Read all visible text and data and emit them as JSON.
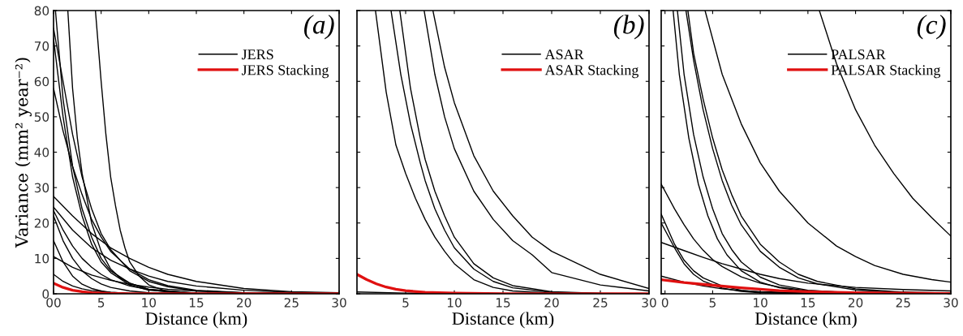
{
  "chart_data": [
    {
      "type": "line",
      "xlabel": "Distance (km)",
      "ylabel": "Variance (mm² year⁻²)",
      "annotations": [
        "(a)"
      ],
      "xlim": [
        0,
        30
      ],
      "ylim": [
        0,
        80
      ],
      "xticks": [
        {
          "value": 0,
          "label": "00"
        },
        5,
        10,
        15,
        20,
        25,
        30
      ],
      "yticks": [
        0,
        10,
        20,
        30,
        40,
        50,
        60,
        70,
        80
      ],
      "legend": "top right",
      "grid": false,
      "line_style": "solid",
      "marker": "none",
      "series": [
        {
          "name": "JERS",
          "color": "#000000",
          "x": [
            4.4,
            5,
            5.5,
            6,
            6.5,
            7,
            7.5,
            8,
            9,
            10,
            12,
            15,
            20,
            30
          ],
          "values": [
            80,
            60,
            45,
            33,
            25,
            18,
            13,
            9,
            5,
            2.5,
            0.6,
            0.1,
            0,
            0
          ]
        },
        {
          "color": "#000000",
          "x": [
            1.5,
            2,
            2.5,
            3,
            4,
            5,
            6,
            7,
            8,
            10,
            12,
            15,
            20,
            30
          ],
          "values": [
            80,
            58,
            44,
            34,
            20,
            12,
            7,
            4.5,
            3,
            1.2,
            0.5,
            0.1,
            0,
            0
          ]
        },
        {
          "color": "#000000",
          "x": [
            0.2,
            1,
            2,
            3,
            4,
            5,
            6,
            8,
            10,
            15,
            20,
            30
          ],
          "values": [
            80,
            55,
            36,
            24,
            16,
            10,
            6.5,
            3,
            1.3,
            0.2,
            0,
            0
          ]
        },
        {
          "color": "#000000",
          "x": [
            0,
            1,
            2,
            3,
            4,
            5,
            6,
            8,
            10,
            12,
            15,
            20,
            25,
            30
          ],
          "values": [
            75,
            60,
            45,
            33,
            24,
            17,
            12.5,
            6.5,
            3.5,
            2,
            0.8,
            0.2,
            0,
            0
          ]
        },
        {
          "color": "#000000",
          "x": [
            0,
            1,
            2,
            3,
            4,
            5,
            6,
            8,
            10,
            15,
            20,
            30
          ],
          "values": [
            72,
            50,
            33,
            22,
            14,
            9,
            6,
            2.5,
            1,
            0.1,
            0,
            0
          ]
        },
        {
          "color": "#000000",
          "x": [
            0,
            1,
            2,
            3,
            4,
            5,
            6,
            8,
            10,
            12,
            15,
            20,
            25,
            30
          ],
          "values": [
            58,
            46,
            36,
            28,
            21,
            16,
            12,
            7,
            4,
            2.3,
            1,
            0.3,
            0.1,
            0
          ]
        },
        {
          "color": "#000000",
          "x": [
            0,
            2,
            4,
            6,
            8,
            10,
            12,
            15,
            20,
            25,
            30
          ],
          "values": [
            27.5,
            22,
            17,
            13,
            10,
            7.5,
            5.5,
            3.5,
            1.5,
            0.6,
            0.3
          ]
        },
        {
          "color": "#000000",
          "x": [
            0,
            2,
            4,
            6,
            8,
            10,
            12,
            15,
            20,
            25,
            30
          ],
          "values": [
            24.5,
            18,
            13,
            9.5,
            7,
            5,
            3.5,
            2.2,
            1,
            0.4,
            0.2
          ]
        },
        {
          "color": "#000000",
          "x": [
            0,
            1,
            2,
            3,
            4,
            5,
            6,
            8,
            10,
            15,
            20,
            30
          ],
          "values": [
            23.5,
            18,
            13.5,
            10,
            7.5,
            5.5,
            4,
            2.2,
            1.2,
            0.2,
            0,
            0
          ]
        },
        {
          "color": "#000000",
          "x": [
            0,
            1,
            2,
            3,
            4,
            5,
            6,
            8,
            10,
            15,
            30
          ],
          "values": [
            22,
            15,
            10,
            6.5,
            4.3,
            2.8,
            1.8,
            0.8,
            0.3,
            0,
            0
          ]
        },
        {
          "color": "#000000",
          "x": [
            0,
            1,
            2,
            3,
            4,
            5,
            6,
            8,
            10,
            30
          ],
          "values": [
            15,
            9,
            5,
            2.7,
            1.5,
            0.8,
            0.4,
            0.1,
            0,
            0
          ]
        },
        {
          "color": "#000000",
          "x": [
            0,
            2,
            4,
            6,
            8,
            10,
            12,
            15,
            20,
            25,
            30
          ],
          "values": [
            10.5,
            7.5,
            5.3,
            3.8,
            2.7,
            1.9,
            1.3,
            0.8,
            0.3,
            0.1,
            0
          ]
        },
        {
          "color": "#000000",
          "x": [
            0,
            1,
            2,
            3,
            4,
            6,
            8,
            10,
            30
          ],
          "values": [
            5.5,
            3.5,
            2.2,
            1.4,
            0.9,
            0.4,
            0.1,
            0,
            0
          ]
        },
        {
          "name": "JERS Stacking",
          "color": "#e01010",
          "x": [
            0,
            1,
            2,
            3,
            4,
            6,
            8,
            30
          ],
          "values": [
            3,
            1.8,
            1,
            0.6,
            0.3,
            0.1,
            0,
            0
          ]
        }
      ]
    },
    {
      "type": "line",
      "xlabel": "Distance (km)",
      "annotations": [
        "(b)"
      ],
      "xlim": [
        0,
        30
      ],
      "ylim": [
        0,
        80
      ],
      "xticks": [
        5,
        10,
        15,
        20,
        25,
        30
      ],
      "yticks": [
        0,
        10,
        20,
        30,
        40,
        50,
        60,
        70,
        80
      ],
      "tick_labels": "x",
      "legend": "top right",
      "grid": false,
      "line_style": "solid",
      "marker": "none",
      "series": [
        {
          "name": "ASAR",
          "color": "#000000",
          "x": [
            1.9,
            3,
            4,
            5,
            6,
            7,
            8,
            9,
            10,
            12,
            14,
            16,
            20,
            25,
            30
          ],
          "values": [
            80,
            57,
            42,
            34,
            27,
            21,
            16,
            12,
            8.5,
            4,
            1.8,
            0.8,
            0.2,
            0,
            0
          ]
        },
        {
          "color": "#000000",
          "x": [
            3.5,
            4.5,
            5.5,
            6.5,
            7,
            8,
            9,
            10,
            12,
            14,
            16,
            20,
            25,
            30
          ],
          "values": [
            80,
            62,
            48,
            37,
            32,
            24,
            18,
            13,
            7,
            3.5,
            1.7,
            0.4,
            0.1,
            0
          ]
        },
        {
          "color": "#000000",
          "x": [
            4.4,
            5.5,
            6.5,
            7,
            8,
            9,
            10,
            12,
            14,
            16,
            20,
            25,
            30
          ],
          "values": [
            80,
            58,
            44,
            38,
            29,
            22,
            16,
            8.5,
            4.5,
            2.3,
            0.6,
            0.1,
            0
          ]
        },
        {
          "color": "#000000",
          "x": [
            6.9,
            8,
            9,
            10,
            12,
            14,
            16,
            18,
            20,
            25,
            30
          ],
          "values": [
            80,
            62,
            50,
            41,
            29,
            21,
            15,
            11,
            6,
            2.5,
            0.8
          ]
        },
        {
          "color": "#000000",
          "x": [
            7.8,
            9,
            10,
            12,
            14,
            16,
            18,
            20,
            25,
            30
          ],
          "values": [
            80,
            64,
            54,
            39,
            29,
            22,
            16,
            12,
            5.5,
            1.5
          ]
        },
        {
          "color": "#000000",
          "x": [
            0,
            5,
            10,
            30
          ],
          "values": [
            0.5,
            0.2,
            0.1,
            0
          ]
        },
        {
          "name": "ASAR Stacking",
          "color": "#e01010",
          "x": [
            0,
            1,
            2,
            3,
            4,
            5,
            7,
            10,
            15,
            30
          ],
          "values": [
            5.5,
            4,
            2.8,
            1.9,
            1.3,
            0.9,
            0.4,
            0.2,
            0,
            0
          ]
        }
      ]
    },
    {
      "type": "line",
      "xlabel": "Distance (km)",
      "annotations": [
        "(c)"
      ],
      "xlim": [
        -0.4,
        30
      ],
      "ylim": [
        0,
        80
      ],
      "xticks": [
        0,
        5,
        10,
        15,
        20,
        25,
        30
      ],
      "yticks": [
        0,
        10,
        20,
        30,
        40,
        50,
        60,
        70,
        80
      ],
      "tick_labels": "x",
      "legend": "top right",
      "grid": false,
      "line_style": "solid",
      "marker": "none",
      "series": [
        {
          "name": "PALSAR",
          "color": "#000000",
          "x": [
            16.2,
            18,
            20,
            22,
            24,
            26,
            28,
            30
          ],
          "values": [
            80,
            65,
            52,
            42,
            34,
            27,
            21.5,
            16.3
          ]
        },
        {
          "color": "#000000",
          "x": [
            4.2,
            6,
            8,
            10,
            12,
            15,
            18,
            20,
            22,
            25,
            28,
            30
          ],
          "values": [
            80,
            62,
            48,
            37,
            29,
            20,
            13.5,
            10.5,
            8,
            5.5,
            4,
            3.3
          ]
        },
        {
          "color": "#000000",
          "x": [
            2.2,
            3,
            4,
            5,
            6,
            7,
            8,
            10,
            12,
            14,
            16,
            20,
            25
          ],
          "values": [
            80,
            66,
            52,
            41,
            32,
            25,
            19.5,
            12,
            7.5,
            4.5,
            2.8,
            1.1,
            0.3
          ]
        },
        {
          "color": "#000000",
          "x": [
            2.4,
            3,
            4,
            5,
            6,
            7,
            8,
            10,
            12,
            14,
            16,
            20,
            25,
            30
          ],
          "values": [
            80,
            68,
            55,
            44,
            35,
            28,
            22,
            14,
            9,
            5.5,
            3.5,
            1.4,
            0.5,
            0.2
          ]
        },
        {
          "color": "#000000",
          "x": [
            1.3,
            2,
            3,
            4,
            5,
            6,
            7,
            8,
            10,
            12,
            15,
            20,
            30
          ],
          "values": [
            80,
            62,
            45,
            33,
            24,
            17,
            12.5,
            9,
            4.7,
            2.5,
            1,
            0.2,
            0
          ]
        },
        {
          "color": "#000000",
          "x": [
            0.85,
            1.5,
            2.5,
            3.5,
            4.5,
            5.5,
            6.5,
            8,
            10,
            12,
            15,
            20,
            30
          ],
          "values": [
            80,
            62,
            44,
            31,
            22,
            15.5,
            11,
            6.5,
            3.3,
            1.7,
            0.6,
            0.1,
            0
          ]
        },
        {
          "color": "#000000",
          "x": [
            -0.4,
            1,
            2,
            3,
            4,
            5,
            6,
            8,
            10,
            12,
            15,
            20,
            25,
            30
          ],
          "values": [
            31,
            24,
            19.5,
            15.5,
            12.3,
            9.7,
            7.7,
            4.8,
            3,
            1.9,
            0.9,
            0.3,
            0.1,
            0
          ]
        },
        {
          "color": "#000000",
          "x": [
            -0.4,
            1,
            2,
            3,
            4,
            6,
            8,
            10,
            15,
            30
          ],
          "values": [
            22.5,
            14,
            9.5,
            6.5,
            4.5,
            2.2,
            1,
            0.5,
            0.1,
            0
          ]
        },
        {
          "color": "#000000",
          "x": [
            -0.4,
            1,
            2,
            3,
            4,
            6,
            8,
            10,
            15,
            30
          ],
          "values": [
            20,
            13,
            8.5,
            5.5,
            3.6,
            1.6,
            0.7,
            0.3,
            0,
            0
          ]
        },
        {
          "color": "#000000",
          "x": [
            -0.4,
            2,
            4,
            6,
            8,
            10,
            12,
            15,
            20,
            25,
            30
          ],
          "values": [
            14.5,
            12.2,
            10.3,
            8.5,
            7,
            5.5,
            4.3,
            3,
            1.8,
            1.2,
            0.8
          ]
        },
        {
          "color": "#000000",
          "x": [
            -0.4,
            2,
            4,
            6,
            8,
            10,
            15,
            20,
            30
          ],
          "values": [
            5,
            3.3,
            2.2,
            1.4,
            0.9,
            0.6,
            0.2,
            0.1,
            0
          ]
        },
        {
          "name": "PALSAR Stacking",
          "color": "#e01010",
          "x": [
            -0.4,
            2,
            5,
            8,
            10,
            12,
            15,
            20,
            25,
            30
          ],
          "values": [
            4,
            3.2,
            2.4,
            1.7,
            1.3,
            0.9,
            0.6,
            0.3,
            0.2,
            0.1
          ]
        }
      ]
    }
  ]
}
